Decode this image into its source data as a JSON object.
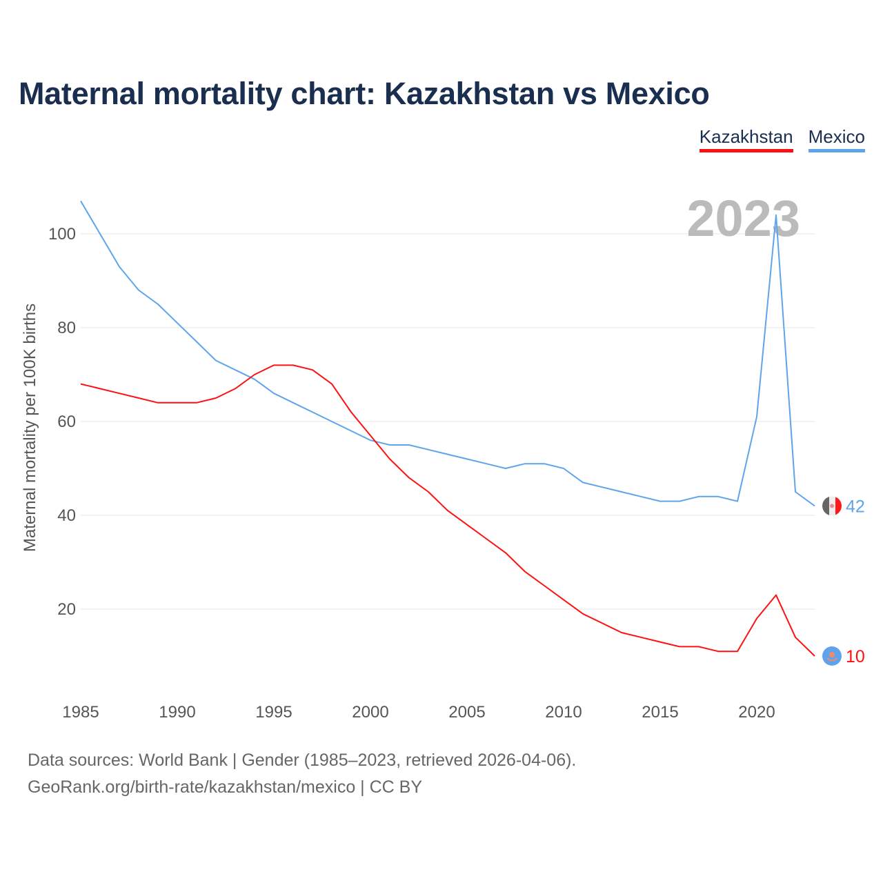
{
  "title": "Maternal mortality chart: Kazakhstan vs Mexico",
  "year_label": "2023",
  "sources": [
    "Data sources: World Bank | Gender (1985–2023, retrieved 2026-04-06).",
    "GeoRank.org/birth-rate/kazakhstan/mexico | CC BY"
  ],
  "chart_data": {
    "type": "line",
    "title": "Maternal mortality chart: Kazakhstan vs Mexico",
    "xlabel": "",
    "ylabel": "Maternal mortality per 100K births",
    "xlim": [
      1985,
      2023
    ],
    "ylim": [
      0,
      110
    ],
    "x_ticks": [
      "1985",
      "1990",
      "1995",
      "2000",
      "2005",
      "2010",
      "2015",
      "2020"
    ],
    "y_ticks": [
      "20",
      "40",
      "60",
      "80",
      "100"
    ],
    "legend_position": "top-right",
    "x": [
      1985,
      1986,
      1987,
      1988,
      1989,
      1990,
      1991,
      1992,
      1993,
      1994,
      1995,
      1996,
      1997,
      1998,
      1999,
      2000,
      2001,
      2002,
      2003,
      2004,
      2005,
      2006,
      2007,
      2008,
      2009,
      2010,
      2011,
      2012,
      2013,
      2014,
      2015,
      2016,
      2017,
      2018,
      2019,
      2020,
      2021,
      2022,
      2023
    ],
    "series": [
      {
        "name": "Kazakhstan",
        "color": "#ff1010",
        "end_label": "10",
        "values": [
          68,
          67,
          66,
          65,
          64,
          64,
          64,
          65,
          67,
          70,
          72,
          72,
          71,
          68,
          62,
          57,
          52,
          48,
          45,
          41,
          38,
          35,
          32,
          28,
          25,
          22,
          19,
          17,
          15,
          14,
          13,
          12,
          12,
          11,
          11,
          18,
          23,
          14,
          10
        ]
      },
      {
        "name": "Mexico",
        "color": "#5ea4ec",
        "end_label": "42",
        "values": [
          107,
          100,
          93,
          88,
          85,
          81,
          77,
          73,
          71,
          69,
          66,
          64,
          62,
          60,
          58,
          56,
          55,
          55,
          54,
          53,
          52,
          51,
          50,
          51,
          51,
          50,
          47,
          46,
          45,
          44,
          43,
          43,
          44,
          44,
          43,
          61,
          104,
          45,
          42
        ]
      }
    ]
  }
}
